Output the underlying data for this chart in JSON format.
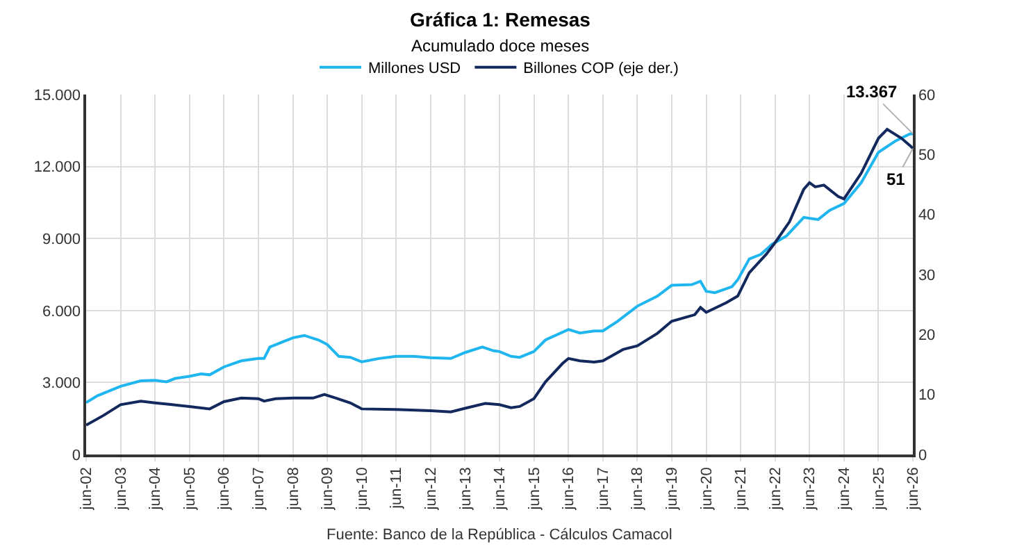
{
  "chart_data": {
    "type": "line",
    "title": "Gráfica 1: Remesas",
    "subtitle": "Acumulado doce meses",
    "annotations": [
      "Fuente: Banco de la República - Cálculos Camacol"
    ],
    "series": [
      {
        "name": "Millones USD",
        "color": "#1fb6f0",
        "x": [
          "2002-06",
          "2002-10",
          "2003-06",
          "2004-01",
          "2004-06",
          "2004-10",
          "2005-01",
          "2005-06",
          "2005-10",
          "2006-01",
          "2006-06",
          "2006-12",
          "2007-06",
          "2007-08",
          "2007-10",
          "2008-06",
          "2008-10",
          "2009-03",
          "2009-06",
          "2009-10",
          "2010-02",
          "2010-06",
          "2010-12",
          "2011-06",
          "2011-12",
          "2012-06",
          "2013-01",
          "2013-06",
          "2013-12",
          "2014-04",
          "2014-06",
          "2014-10",
          "2015-01",
          "2015-06",
          "2015-10",
          "2016-06",
          "2016-10",
          "2017-03",
          "2017-06",
          "2017-11",
          "2018-06",
          "2019-01",
          "2019-06",
          "2020-01",
          "2020-04",
          "2020-06",
          "2020-09",
          "2021-03",
          "2021-05",
          "2021-09",
          "2022-01",
          "2022-05",
          "2022-10",
          "2023-04",
          "2023-09",
          "2024-01",
          "2024-06",
          "2024-12",
          "2025-06",
          "2025-12",
          "2026-05",
          "2026-06"
        ],
        "values": [
          2160,
          2450,
          2840,
          3070,
          3090,
          3030,
          3170,
          3260,
          3360,
          3320,
          3650,
          3900,
          4000,
          4000,
          4480,
          4860,
          4960,
          4770,
          4580,
          4090,
          4050,
          3860,
          4000,
          4090,
          4090,
          4030,
          4000,
          4250,
          4480,
          4320,
          4290,
          4090,
          4050,
          4290,
          4770,
          5210,
          5060,
          5150,
          5150,
          5540,
          6180,
          6600,
          7050,
          7080,
          7220,
          6800,
          6740,
          6990,
          7280,
          8150,
          8340,
          8760,
          9110,
          9880,
          9790,
          10170,
          10460,
          11330,
          12590,
          13070,
          13360,
          13367
        ],
        "value_labels": [
          null,
          null,
          null,
          null,
          null,
          null,
          null,
          null,
          null,
          null,
          null,
          null,
          null,
          null,
          null,
          null,
          null,
          null,
          null,
          null,
          null,
          null,
          null,
          null,
          null,
          null,
          null,
          null,
          null,
          null,
          null,
          null,
          null,
          null,
          null,
          null,
          null,
          null,
          null,
          null,
          null,
          null,
          null,
          null,
          null,
          null,
          null,
          null,
          null,
          null,
          null,
          null,
          null,
          null,
          null,
          null,
          null,
          null,
          null,
          null,
          null,
          "13.367"
        ]
      },
      {
        "name": "Billones COP (eje der.)",
        "color": "#13295e",
        "axis": "y2",
        "x": [
          "2002-06",
          "2002-12",
          "2003-06",
          "2004-01",
          "2004-06",
          "2004-12",
          "2005-06",
          "2006-01",
          "2006-06",
          "2006-12",
          "2007-06",
          "2007-08",
          "2007-12",
          "2008-06",
          "2009-01",
          "2009-05",
          "2009-09",
          "2010-02",
          "2010-06",
          "2011-06",
          "2012-06",
          "2013-01",
          "2013-06",
          "2014-01",
          "2014-06",
          "2014-10",
          "2015-01",
          "2015-06",
          "2015-10",
          "2016-04",
          "2016-06",
          "2016-10",
          "2017-03",
          "2017-06",
          "2018-01",
          "2018-06",
          "2019-01",
          "2019-06",
          "2020-02",
          "2020-04",
          "2020-06",
          "2021-01",
          "2021-05",
          "2021-09",
          "2022-03",
          "2022-06",
          "2022-11",
          "2023-04",
          "2023-06",
          "2023-08",
          "2023-11",
          "2024-04",
          "2024-06",
          "2024-12",
          "2025-06",
          "2025-09",
          "2026-02",
          "2026-05",
          "2026-06"
        ],
        "values": [
          4.9,
          6.5,
          8.3,
          8.9,
          8.6,
          8.3,
          8.0,
          7.6,
          8.8,
          9.4,
          9.3,
          8.9,
          9.3,
          9.4,
          9.4,
          10.0,
          9.4,
          8.6,
          7.6,
          7.5,
          7.3,
          7.1,
          7.7,
          8.5,
          8.3,
          7.8,
          8.0,
          9.3,
          12.1,
          15.2,
          16.0,
          15.6,
          15.4,
          15.6,
          17.5,
          18.1,
          20.2,
          22.2,
          23.3,
          24.5,
          23.7,
          25.3,
          26.4,
          30.3,
          33.4,
          35.3,
          38.8,
          44.2,
          45.3,
          44.6,
          44.9,
          43.0,
          42.6,
          46.9,
          52.7,
          54.2,
          52.7,
          51.5,
          51
        ],
        "value_labels": [
          null,
          null,
          null,
          null,
          null,
          null,
          null,
          null,
          null,
          null,
          null,
          null,
          null,
          null,
          null,
          null,
          null,
          null,
          null,
          null,
          null,
          null,
          null,
          null,
          null,
          null,
          null,
          null,
          null,
          null,
          null,
          null,
          null,
          null,
          null,
          null,
          null,
          null,
          null,
          null,
          null,
          null,
          null,
          null,
          null,
          null,
          null,
          null,
          null,
          null,
          null,
          null,
          null,
          null,
          null,
          null,
          null,
          null,
          "51"
        ]
      }
    ],
    "xlim": [
      "2002-06",
      "2026-06"
    ],
    "xticks": [
      {
        "value": "2002-06",
        "label": "jun-02"
      },
      {
        "value": "2003-06",
        "label": "jun-03"
      },
      {
        "value": "2004-06",
        "label": "jun-04"
      },
      {
        "value": "2005-06",
        "label": "jun-05"
      },
      {
        "value": "2006-06",
        "label": "jun-06"
      },
      {
        "value": "2007-06",
        "label": "jun-07"
      },
      {
        "value": "2008-06",
        "label": "jun-08"
      },
      {
        "value": "2009-06",
        "label": "jun-09"
      },
      {
        "value": "2010-06",
        "label": "jun-10"
      },
      {
        "value": "2011-06",
        "label": "jun-11"
      },
      {
        "value": "2012-06",
        "label": "jun-12"
      },
      {
        "value": "2013-06",
        "label": "jun-13"
      },
      {
        "value": "2014-06",
        "label": "jun-14"
      },
      {
        "value": "2015-06",
        "label": "jun-15"
      },
      {
        "value": "2016-06",
        "label": "jun-16"
      },
      {
        "value": "2017-06",
        "label": "jun-17"
      },
      {
        "value": "2018-06",
        "label": "jun-18"
      },
      {
        "value": "2019-06",
        "label": "jun-19"
      },
      {
        "value": "2020-06",
        "label": "jun-20"
      },
      {
        "value": "2021-06",
        "label": "jun-21"
      },
      {
        "value": "2022-06",
        "label": "jun-22"
      },
      {
        "value": "2023-06",
        "label": "jun-23"
      },
      {
        "value": "2024-06",
        "label": "jun-24"
      },
      {
        "value": "2025-06",
        "label": "jun-25"
      },
      {
        "value": "2026-06",
        "label": "jun-26"
      }
    ],
    "ylim": [
      0,
      15000
    ],
    "yticks": [
      0,
      {
        "value": 3000,
        "label": "3.000"
      },
      {
        "value": 6000,
        "label": "6.000"
      },
      {
        "value": 9000,
        "label": "9.000"
      },
      {
        "value": 12000,
        "label": "12.000"
      },
      {
        "value": 15000,
        "label": "15.000"
      }
    ],
    "y2lim": [
      0,
      60
    ],
    "y2ticks": [
      0,
      10,
      20,
      30,
      40,
      50,
      60
    ],
    "grid": true,
    "legend": "top",
    "marker": "none",
    "line_style": "solid"
  }
}
